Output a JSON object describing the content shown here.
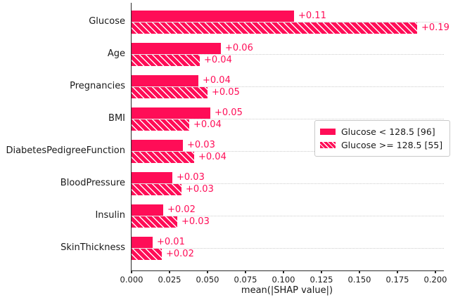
{
  "chart_data": {
    "type": "bar",
    "orientation": "horizontal",
    "title": "",
    "xlabel": "mean(|SHAP value|)",
    "ylabel": "",
    "xlim": [
      0,
      0.2056
    ],
    "grid": "dotted-horizontal-per-category",
    "xticks": [
      {
        "value": 0.0,
        "label": "0.000"
      },
      {
        "value": 0.025,
        "label": "0.025"
      },
      {
        "value": 0.05,
        "label": "0.050"
      },
      {
        "value": 0.075,
        "label": "0.075"
      },
      {
        "value": 0.1,
        "label": "0.100"
      },
      {
        "value": 0.125,
        "label": "0.125"
      },
      {
        "value": 0.15,
        "label": "0.150"
      },
      {
        "value": 0.175,
        "label": "0.175"
      },
      {
        "value": 0.2,
        "label": "0.200"
      }
    ],
    "categories": [
      "Glucose",
      "Age",
      "Pregnancies",
      "BMI",
      "DiabetesPedigreeFunction",
      "BloodPressure",
      "Insulin",
      "SkinThickness"
    ],
    "series": [
      {
        "name": "Glucose < 128.5 [96]",
        "style": "solid",
        "values": [
          0.107,
          0.059,
          0.044,
          0.052,
          0.034,
          0.027,
          0.021,
          0.014
        ],
        "labels": [
          "+0.11",
          "+0.06",
          "+0.04",
          "+0.05",
          "+0.03",
          "+0.03",
          "+0.02",
          "+0.01"
        ]
      },
      {
        "name": "Glucose >= 128.5 [55]",
        "style": "hatched",
        "values": [
          0.188,
          0.045,
          0.05,
          0.038,
          0.041,
          0.033,
          0.03,
          0.02
        ],
        "labels": [
          "+0.19",
          "+0.04",
          "+0.05",
          "+0.04",
          "+0.04",
          "+0.03",
          "+0.03",
          "+0.02"
        ]
      }
    ],
    "legend": {
      "position": "center-right",
      "entries": [
        {
          "label": "Glucose < 128.5 [96]",
          "style": "solid"
        },
        {
          "label": "Glucose >= 128.5 [55]",
          "style": "hatched"
        }
      ]
    },
    "colors": {
      "bar": "#ff0d57",
      "hatch": "#ffffff",
      "value_label": "#ff0d57",
      "gridline": "#cccccc",
      "axis": "#2b2b2b",
      "text": "#1a1a1a",
      "background": "#ffffff"
    }
  }
}
